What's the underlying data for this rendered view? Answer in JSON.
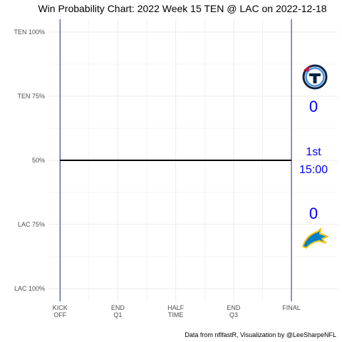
{
  "chart_data": {
    "type": "line",
    "title": "Win Probability Chart: 2022 Week 15 TEN @ LAC on 2022-12-18",
    "caption": "Data from nflfastR, Visualization by @LeeSharpeNFL",
    "x_ticks": [
      {
        "value": 0,
        "line1": "KICK",
        "line2": "OFF"
      },
      {
        "value": 15,
        "line1": "END",
        "line2": "Q1"
      },
      {
        "value": 30,
        "line1": "HALF",
        "line2": "TIME"
      },
      {
        "value": 45,
        "line1": "END",
        "line2": "Q3"
      },
      {
        "value": 60,
        "line1": "FINAL",
        "line2": ""
      }
    ],
    "y_ticks": [
      {
        "value": 1.0,
        "label": "TEN 100%"
      },
      {
        "value": 0.75,
        "label": "TEN 75%"
      },
      {
        "value": 0.5,
        "label": "50%"
      },
      {
        "value": 0.25,
        "label": "LAC 75%"
      },
      {
        "value": 0.0,
        "label": "LAC 100%"
      }
    ],
    "xlim": [
      -3,
      72
    ],
    "ylim": [
      -0.05,
      1.05
    ],
    "series": [
      {
        "x": [
          0,
          60
        ],
        "y": [
          0.5,
          0.5
        ]
      }
    ],
    "vlines": [
      0,
      60
    ],
    "home_team": "LAC",
    "away_team": "TEN",
    "away_score": "0",
    "home_score": "0",
    "period": "1st",
    "clock": "15:00",
    "grid": true,
    "colors": {
      "line": "#000000",
      "vline": "#1f2a7a",
      "score": "#0000ff",
      "grid": "#ebebeb",
      "ten_navy": "#0c2340",
      "ten_blue": "#4b92db",
      "ten_red": "#c8102e",
      "lac_blue": "#0080c6",
      "lac_gold": "#ffc20e"
    },
    "icons": [
      "ten-logo-icon",
      "lac-logo-icon"
    ]
  }
}
